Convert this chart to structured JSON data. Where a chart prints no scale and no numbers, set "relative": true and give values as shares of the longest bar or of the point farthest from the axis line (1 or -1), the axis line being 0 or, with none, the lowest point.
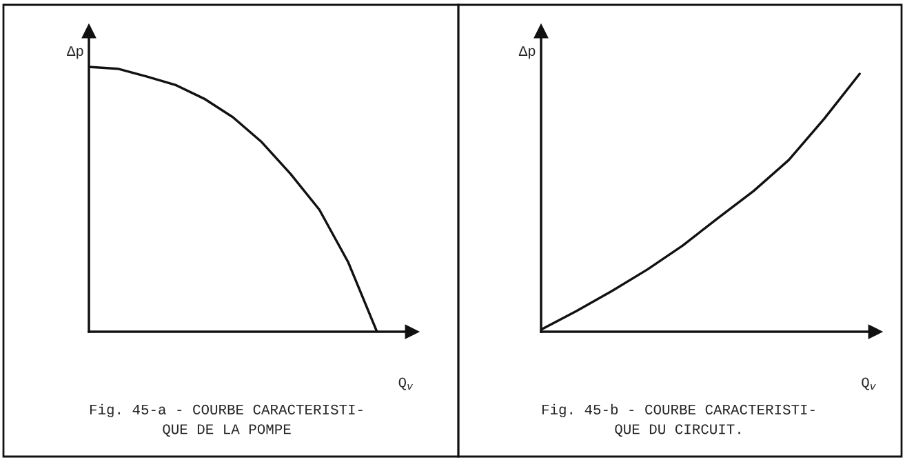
{
  "chart_data": [
    {
      "type": "line",
      "relative": true,
      "title": "Fig. 45-a - COURBE CARACTERISTI-\nQUE DE LA POMPE",
      "xlabel": "Q$_{v}$",
      "ylabel": "Δp",
      "color": "#111111",
      "categories": [
        null,
        null,
        null,
        null,
        null,
        null,
        null,
        null,
        null,
        null,
        null
      ],
      "values": [
        1,
        0.993,
        0.964,
        0.932,
        0.88,
        0.81,
        0.716,
        0.596,
        0.461,
        0.263,
        0
      ]
    },
    {
      "type": "line",
      "relative": true,
      "title": "Fig. 45-b - COURBE CARACTERISTI-\nQUE DU CIRCUIT.",
      "xlabel": "Q$_{v}$",
      "ylabel": "Δp",
      "color": "#111111",
      "categories": [
        null,
        null,
        null,
        null,
        null,
        null,
        null,
        null,
        null,
        null
      ],
      "values": [
        0.008,
        0.08,
        0.158,
        0.241,
        0.334,
        0.441,
        0.545,
        0.666,
        0.826,
        1
      ]
    }
  ]
}
